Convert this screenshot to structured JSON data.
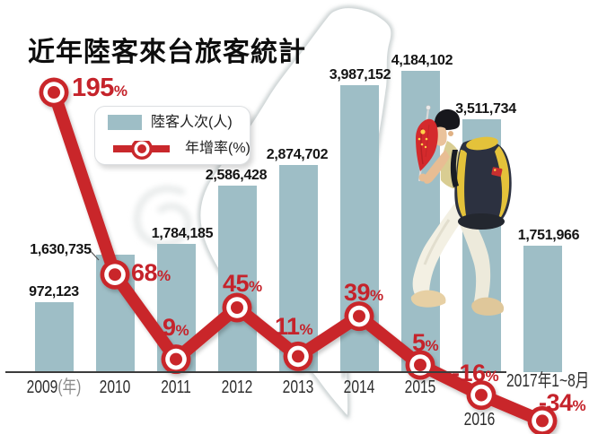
{
  "title": "近年陸客來台旅客統計",
  "legend": {
    "bar_label": "陸客人次(人)",
    "line_label": "年增率(%)"
  },
  "percent_sign": "%",
  "colors": {
    "bar": "#9ebec6",
    "line": "#c9282c",
    "growth_text": "#c5232b",
    "axis": "#3c3c3c"
  },
  "chart_data": {
    "type": "bar",
    "combo": "bar+line",
    "title": "近年陸客來台旅客統計",
    "categories": [
      "2009",
      "2010",
      "2011",
      "2012",
      "2013",
      "2014",
      "2015",
      "2016",
      "2017年1~8月"
    ],
    "x_tick_labels": [
      "2009(年)",
      "2010",
      "2011",
      "2012",
      "2013",
      "2014",
      "2015",
      "2016",
      "2017年1~8月"
    ],
    "series": [
      {
        "name": "陸客人次(人)",
        "type": "bar",
        "values": [
          972123,
          1630735,
          1784185,
          2586428,
          2874702,
          3987152,
          4184102,
          3511734,
          1751966
        ],
        "value_labels": [
          "972,123",
          "1,630,735",
          "1,784,185",
          "2,586,428",
          "2,874,702",
          "3,987,152",
          "4,184,102",
          "3,511,734",
          "1,751,966"
        ]
      },
      {
        "name": "年增率(%)",
        "type": "line",
        "values": [
          195,
          68,
          9,
          45,
          11,
          39,
          5,
          -16,
          -34
        ],
        "value_labels": [
          "195",
          "68",
          "9",
          "45",
          "11",
          "39",
          "5",
          "-16",
          "-34"
        ]
      }
    ],
    "ylim_bar": [
      0,
      4184102
    ],
    "baseline": 0,
    "grid": false,
    "legend_position": "top-left"
  }
}
